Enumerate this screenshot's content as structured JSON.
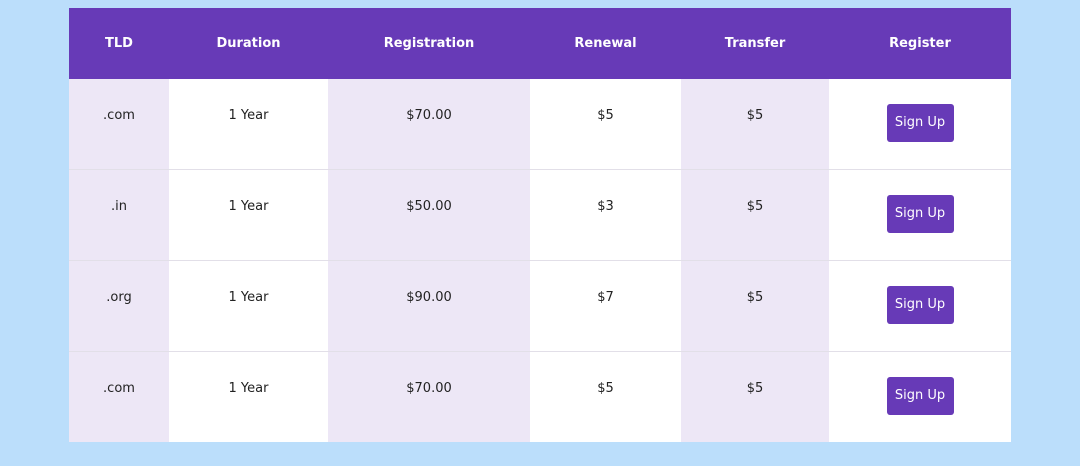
{
  "colors": {
    "accent": "#673ab7",
    "background": "#bbdefb",
    "shade": "#ede7f6"
  },
  "table": {
    "headers": [
      "TLD",
      "Duration",
      "Registration",
      "Renewal",
      "Transfer",
      "Register"
    ],
    "rows": [
      {
        "tld": ".com",
        "duration": "1 Year",
        "registration": "$70.00",
        "renewal": "$5",
        "transfer": "$5",
        "button": "Sign Up"
      },
      {
        "tld": ".in",
        "duration": "1 Year",
        "registration": "$50.00",
        "renewal": "$3",
        "transfer": "$5",
        "button": "Sign Up"
      },
      {
        "tld": ".org",
        "duration": "1 Year",
        "registration": "$90.00",
        "renewal": "$7",
        "transfer": "$5",
        "button": "Sign Up"
      },
      {
        "tld": ".com",
        "duration": "1 Year",
        "registration": "$70.00",
        "renewal": "$5",
        "transfer": "$5",
        "button": "Sign Up"
      }
    ]
  }
}
